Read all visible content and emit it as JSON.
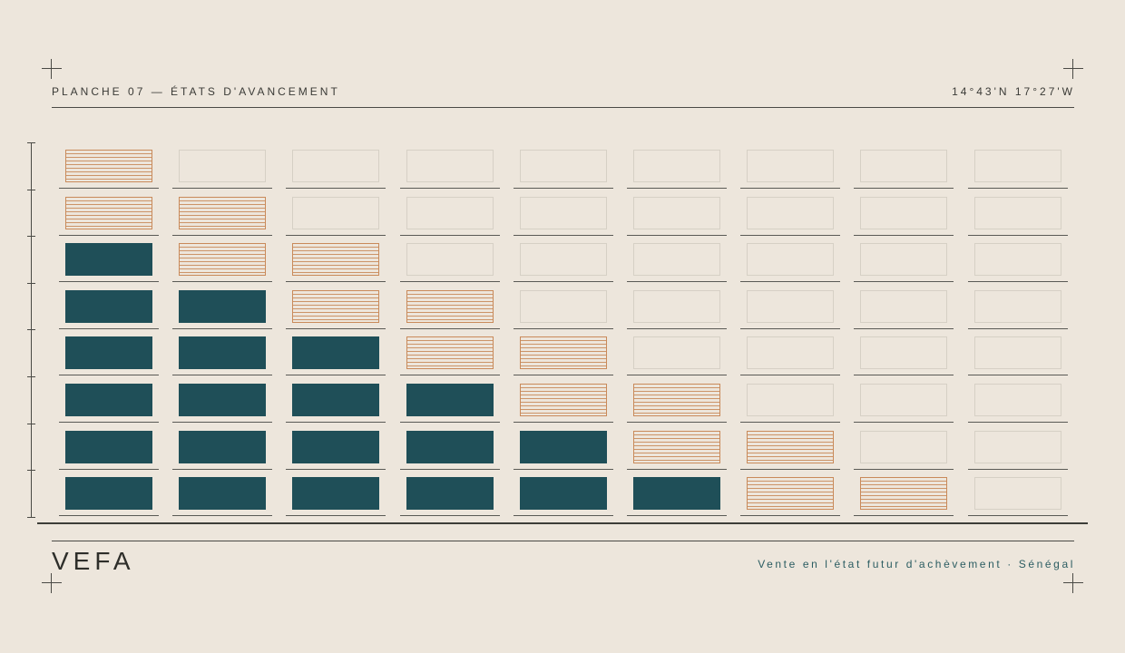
{
  "header": {
    "title": "PLANCHE 07 — ÉTATS D'AVANCEMENT",
    "coords": "14°43'N  17°27'W"
  },
  "footer": {
    "brand": "VEFA",
    "tagline": "Vente en l'état futur d'achèvement · Sénégal"
  },
  "colors": {
    "background": "#ede6dc",
    "done": "#1f4f58",
    "in_progress": "#c98a5a",
    "empty": "#d6d0c5",
    "tagline": "#2c5d62"
  },
  "grid": {
    "columns": 9,
    "floors": 8,
    "rows": [
      [
        "in_progress",
        "empty",
        "empty",
        "empty",
        "empty",
        "empty",
        "empty",
        "empty",
        "empty"
      ],
      [
        "in_progress",
        "in_progress",
        "empty",
        "empty",
        "empty",
        "empty",
        "empty",
        "empty",
        "empty"
      ],
      [
        "done",
        "in_progress",
        "in_progress",
        "empty",
        "empty",
        "empty",
        "empty",
        "empty",
        "empty"
      ],
      [
        "done",
        "done",
        "in_progress",
        "in_progress",
        "empty",
        "empty",
        "empty",
        "empty",
        "empty"
      ],
      [
        "done",
        "done",
        "done",
        "in_progress",
        "in_progress",
        "empty",
        "empty",
        "empty",
        "empty"
      ],
      [
        "done",
        "done",
        "done",
        "done",
        "in_progress",
        "in_progress",
        "empty",
        "empty",
        "empty"
      ],
      [
        "done",
        "done",
        "done",
        "done",
        "done",
        "in_progress",
        "in_progress",
        "empty",
        "empty"
      ],
      [
        "done",
        "done",
        "done",
        "done",
        "done",
        "done",
        "in_progress",
        "in_progress",
        "empty"
      ]
    ]
  }
}
